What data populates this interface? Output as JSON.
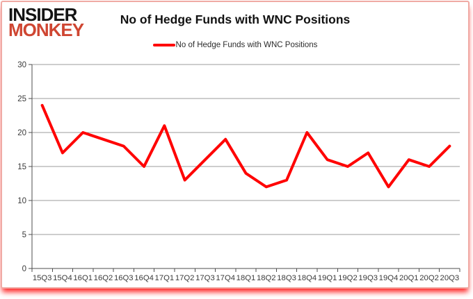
{
  "logo": {
    "line1": "INSIDER",
    "line2": "MONKEY"
  },
  "header": {
    "title": "No of Hedge Funds with WNC Positions"
  },
  "legend": {
    "label": "No of Hedge Funds with WNC Positions"
  },
  "colors": {
    "line": "#ff0000",
    "logo_accent": "#cf4632",
    "grid": "#9b9b9b",
    "axis": "#4d4d4d",
    "tick_text": "#3a3a3a",
    "border": "#f0aaa4",
    "bottom_glow": "#ff0000"
  },
  "chart_data": {
    "type": "line",
    "title": "No of Hedge Funds with WNC Positions",
    "categories": [
      "15Q3",
      "15Q4",
      "16Q1",
      "16Q2",
      "16Q3",
      "16Q4",
      "17Q1",
      "17Q2",
      "17Q3",
      "17Q4",
      "18Q1",
      "18Q2",
      "18Q3",
      "18Q4",
      "19Q1",
      "19Q2",
      "19Q3",
      "19Q4",
      "20Q1",
      "20Q2",
      "20Q3"
    ],
    "values": [
      24,
      17,
      20,
      19,
      18,
      15,
      21,
      13,
      16,
      19,
      14,
      12,
      13,
      20,
      16,
      15,
      17,
      12,
      16,
      15,
      18
    ],
    "series_name": "No of Hedge Funds with WNC Positions",
    "xlabel": "",
    "ylabel": "",
    "ylim": [
      0,
      30
    ],
    "ytick_step": 5,
    "yticks": [
      0,
      5,
      10,
      15,
      20,
      25,
      30
    ],
    "grid": true,
    "legend_position": "top-center"
  }
}
